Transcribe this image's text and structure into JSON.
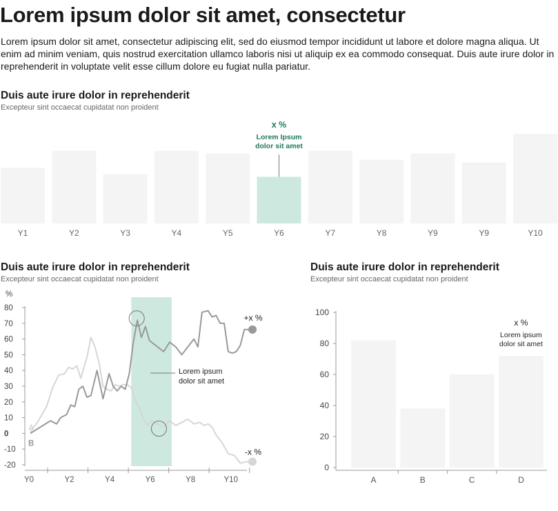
{
  "header": {
    "title": "Lorem ipsum dolor sit amet, consectetur",
    "intro": "Lorem ipsum dolor sit amet, consectetur adipiscing elit, sed do eiusmod tempor incididunt ut labore et dolore magna aliqua. Ut enim ad minim veniam, quis nostrud exercitation ullamco laboris nisi ut aliquip ex ea commodo consequat. Duis aute irure dolor in reprehenderit in voluptate velit esse cillum dolore eu fugiat nulla pariatur."
  },
  "colors": {
    "bar": "#f4f4f5",
    "highlight": "#cde8de",
    "accent": "#1f7a5a",
    "line_a": "#d6d6d6",
    "line_b": "#999999",
    "axis": "#999999"
  },
  "chart_data": [
    {
      "type": "bar",
      "title": "Duis aute irure dolor in reprehenderit",
      "subtitle": "Excepteur sint occaecat cupidatat non proident",
      "categories": [
        "Y1",
        "Y2",
        "Y3",
        "Y4",
        "Y5",
        "Y6",
        "Y7",
        "Y8",
        "Y9",
        "Y9",
        "Y10"
      ],
      "values": [
        62,
        81,
        55,
        81,
        78,
        52,
        81,
        71,
        78,
        68,
        100
      ],
      "highlight_index": 5,
      "annotation": {
        "value": "x %",
        "label_line1": "Lorem Ipsum",
        "label_line2": "dolor sit amet"
      }
    },
    {
      "type": "line",
      "title": "Duis aute irure dolor in reprehenderit",
      "subtitle": "Excepteur sint occaecat cupidatat non proident",
      "ylabel": "%",
      "ylim": [
        -20,
        80
      ],
      "yticks": [
        80,
        70,
        60,
        50,
        40,
        30,
        20,
        10,
        0,
        -10,
        -20
      ],
      "xlim": [
        0,
        11
      ],
      "xticks": [
        "Y0",
        "Y2",
        "Y4",
        "Y6",
        "Y8",
        "Y10"
      ],
      "xtick_values": [
        0,
        2,
        4,
        6,
        8,
        10
      ],
      "highlight_range": [
        5,
        7
      ],
      "annotation": {
        "label_line1": "Lorem ipsum",
        "label_line2": "dolor sit amet"
      },
      "series": [
        {
          "name": "A",
          "end_label": "-x %",
          "x": [
            0,
            0.4,
            0.8,
            1.1,
            1.4,
            1.7,
            1.9,
            2.1,
            2.3,
            2.5,
            2.7,
            2.8,
            3.0,
            3.2,
            3.4,
            3.6,
            3.8,
            4.0,
            4.2,
            4.4,
            4.6,
            4.8,
            5.0,
            5.2,
            5.4,
            5.6,
            5.8,
            6.0,
            6.3,
            6.6,
            6.9,
            7.2,
            7.5,
            7.8,
            8.1,
            8.4,
            8.6,
            8.8,
            9.0,
            9.2,
            9.5,
            9.8,
            10.1,
            10.4,
            10.7,
            11.0
          ],
          "y": [
            1,
            8,
            17,
            29,
            37,
            38,
            42,
            41,
            43,
            35,
            44,
            48,
            61,
            55,
            45,
            30,
            28,
            27,
            31,
            30,
            31,
            31,
            29,
            21,
            16,
            9,
            5,
            8,
            6,
            4,
            8,
            5,
            7,
            9,
            6,
            7,
            5,
            6,
            4,
            -1,
            -6,
            -13,
            -14,
            -19,
            -18,
            -18
          ]
        },
        {
          "name": "B",
          "end_label": "+x %",
          "x": [
            0,
            0.5,
            1.0,
            1.3,
            1.5,
            1.8,
            2.0,
            2.2,
            2.4,
            2.6,
            2.8,
            3.0,
            3.3,
            3.6,
            3.9,
            4.1,
            4.3,
            4.5,
            4.7,
            4.9,
            5.1,
            5.3,
            5.5,
            5.7,
            5.9,
            6.1,
            6.3,
            6.6,
            6.9,
            7.2,
            7.5,
            7.8,
            8.1,
            8.3,
            8.5,
            8.8,
            9.0,
            9.2,
            9.4,
            9.6,
            9.8,
            10.0,
            10.2,
            10.4,
            10.6,
            10.8,
            11.0
          ],
          "y": [
            0,
            4,
            8,
            6,
            10,
            12,
            18,
            17,
            28,
            30,
            23,
            24,
            40,
            22,
            38,
            30,
            27,
            30,
            28,
            38,
            58,
            72,
            61,
            68,
            59,
            57,
            55,
            52,
            58,
            55,
            50,
            55,
            60,
            55,
            77,
            78,
            74,
            75,
            70,
            70,
            52,
            51,
            52,
            56,
            66,
            66,
            66
          ]
        }
      ]
    },
    {
      "type": "bar",
      "title": "Duis aute irure dolor in reprehenderit",
      "subtitle": "Excepteur sint occaecat cupidatat non proident",
      "categories": [
        "A",
        "B",
        "C",
        "D"
      ],
      "values": [
        82,
        38,
        60,
        72
      ],
      "ylim": [
        0,
        100
      ],
      "yticks": [
        0,
        20,
        40,
        60,
        80,
        100
      ],
      "annotation": {
        "value": "x %",
        "label_line1": "Lorem ipsum",
        "label_line2": "dolor sit amet"
      }
    }
  ]
}
